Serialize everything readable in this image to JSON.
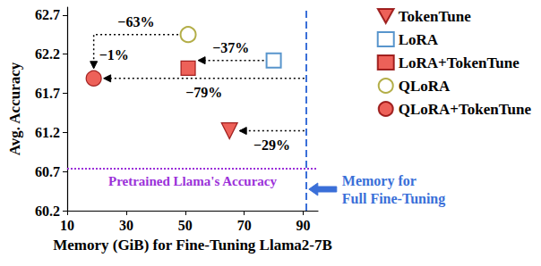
{
  "chart_data": {
    "type": "scatter",
    "x_label": "Memory (GiB) for Fine-Tuning Llama2-7B",
    "y_label": "Avg. Accuracy",
    "xlim": [
      10,
      95
    ],
    "xticks": [
      10,
      30,
      50,
      70,
      90
    ],
    "ylim": [
      60.2,
      62.8
    ],
    "yticks": [
      60.2,
      60.7,
      61.2,
      61.7,
      62.2,
      62.7
    ],
    "grid": false,
    "legend": "right",
    "series": [
      {
        "name": "TokenTune",
        "color": "#e8392f",
        "marker": "triangle-down",
        "x": [
          65
        ],
        "values": [
          61.22
        ]
      },
      {
        "name": "LoRA",
        "color": "#2e7bbf",
        "marker": "square-open",
        "x": [
          80
        ],
        "values": [
          62.12
        ]
      },
      {
        "name": "LoRA+TokenTune",
        "color": "#e8392f",
        "marker": "square",
        "x": [
          51
        ],
        "values": [
          62.02
        ]
      },
      {
        "name": "QLoRA",
        "color": "#a09a1a",
        "marker": "circle-open",
        "x": [
          51
        ],
        "values": [
          62.45
        ]
      },
      {
        "name": "QLoRA+TokenTune",
        "color": "#e8392f",
        "marker": "circle",
        "x": [
          19
        ],
        "values": [
          61.89
        ]
      }
    ],
    "reference_lines": [
      {
        "axis": "y",
        "value": 60.74,
        "label": "Pretrained Llama's Accuracy",
        "color": "#9b30d9",
        "line_style": "dotted"
      },
      {
        "axis": "x",
        "value": 91,
        "label": "Memory for\nFull Fine-Tuning",
        "color": "#3a6fd8",
        "line_style": "dashed"
      }
    ],
    "annotations": [
      {
        "from": "LoRA",
        "to": "LoRA+TokenTune",
        "labels": [
          "−37%"
        ]
      },
      {
        "from": "QLoRA",
        "to": "QLoRA+TokenTune",
        "labels": [
          "−63%",
          "−1%"
        ]
      },
      {
        "from": 91,
        "to": "QLoRA+TokenTune",
        "labels": [
          "−79%"
        ]
      },
      {
        "from": 91,
        "to": "TokenTune",
        "labels": [
          "−29%"
        ]
      }
    ]
  }
}
